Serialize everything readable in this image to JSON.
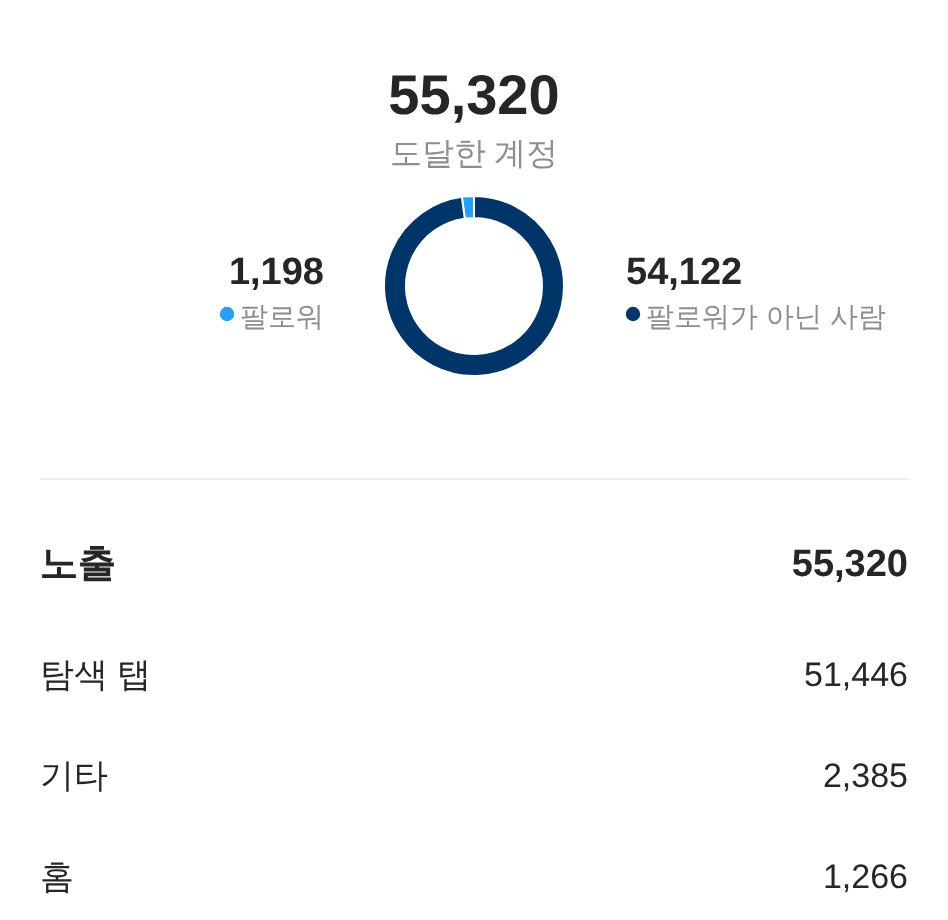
{
  "chart_data": [
    {
      "type": "donut",
      "title": "55,320",
      "subtitle": "도달한 계정",
      "categories": [
        "팔로워",
        "팔로워가 아닌 사람"
      ],
      "values": [
        1198,
        54122
      ],
      "value_labels": [
        "1,198",
        "54,122"
      ],
      "colors": [
        "#2a9df4",
        "#003569"
      ],
      "legend": "center"
    },
    {
      "type": "other",
      "title": "노출",
      "annotations": [
        "55,320"
      ],
      "categories": [
        "탐색 탭",
        "기타",
        "홈"
      ],
      "values": [
        51446,
        2385,
        1266
      ],
      "value_labels": [
        "51,446",
        "2,385",
        "1,266"
      ]
    }
  ]
}
